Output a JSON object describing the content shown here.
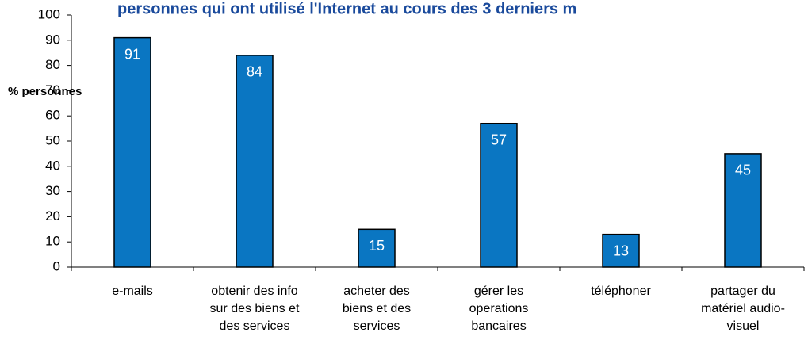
{
  "chart_data": {
    "type": "bar",
    "title": "personnes qui ont utilisé l'Internet au cours des 3 derniers m",
    "y_label": "% personnes",
    "categories": [
      "e-mails",
      "obtenir des info\nsur des biens et\ndes services",
      "acheter des\nbiens et des\nservices",
      "gérer les\noperations\nbancaires",
      "téléphoner",
      "partager du\nmatériel audio-\nvisuel"
    ],
    "values": [
      91,
      84,
      15,
      57,
      13,
      45
    ],
    "color": "#0a76c2",
    "ylim": [
      0,
      100
    ],
    "yticks": [
      0,
      10,
      20,
      30,
      40,
      50,
      60,
      70,
      80,
      90,
      100
    ],
    "grid": false
  }
}
